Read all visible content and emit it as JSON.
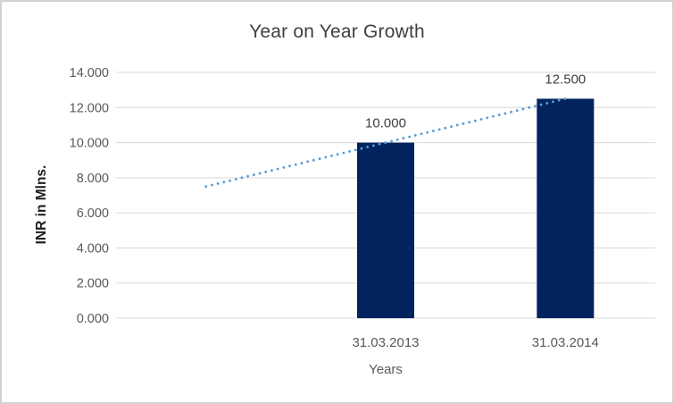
{
  "chart_data": {
    "type": "bar",
    "title": "Year on Year Growth",
    "categories": [
      "31.03.2013",
      "31.03.2014"
    ],
    "values": [
      10.0,
      12.5
    ],
    "value_labels": [
      "10.000",
      "12.500"
    ],
    "xlabel": "Years",
    "ylabel": "INR in Mlns.",
    "ylim": [
      0,
      14
    ],
    "ytick_labels": [
      "0.000",
      "2.000",
      "4.000",
      "6.000",
      "8.000",
      "10.000",
      "12.000",
      "14.000"
    ],
    "grid": true,
    "legend_position": "none",
    "bar_color": "#01235e",
    "gridline_color": "#d9d9d9",
    "tick_label_color": "#595959",
    "data_label_color": "#404040",
    "trendline": {
      "style": "dotted",
      "color": "#5b9bd5",
      "description": "linear trendline extended backward one category period",
      "start_value": 7.5,
      "end_value": 12.5
    }
  }
}
